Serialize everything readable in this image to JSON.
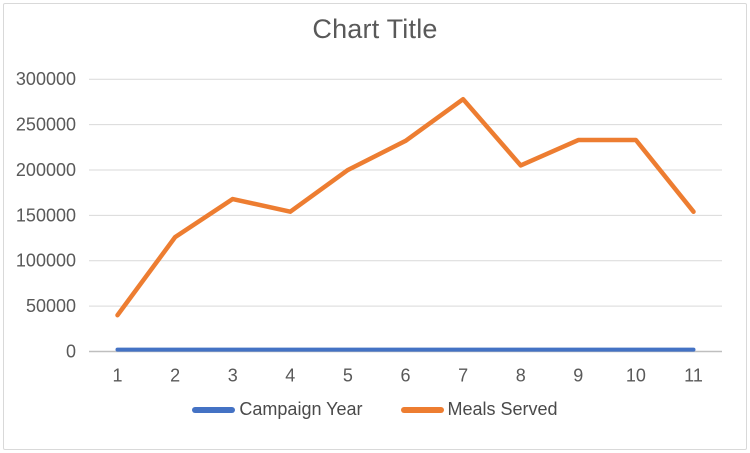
{
  "chart": {
    "colors": {
      "background": "#FFFFFF",
      "border": "#D9D9D9",
      "gridline": "#D9D9D9",
      "axis_line": "#BFBFBF",
      "title_text": "#595959",
      "tick_text": "#595959",
      "legend_text": "#4A4A4A"
    }
  },
  "chart_data": {
    "type": "line",
    "title": "Chart Title",
    "xlabel": "",
    "ylabel": "",
    "categories": [
      "1",
      "2",
      "3",
      "4",
      "5",
      "6",
      "7",
      "8",
      "9",
      "10",
      "11"
    ],
    "series": [
      {
        "name": "Campaign Year",
        "color": "#4472C4",
        "values": [
          2010,
          2011,
          2012,
          2013,
          2014,
          2015,
          2016,
          2017,
          2018,
          2019,
          2020
        ]
      },
      {
        "name": "Meals Served",
        "color": "#ED7D31",
        "values": [
          40000,
          126000,
          168000,
          154000,
          200000,
          232000,
          278000,
          205000,
          233000,
          233000,
          154000
        ]
      }
    ],
    "ylim": [
      0,
      300000
    ],
    "yticks": [
      0,
      50000,
      100000,
      150000,
      200000,
      250000,
      300000
    ],
    "grid": true,
    "legend_position": "bottom"
  }
}
